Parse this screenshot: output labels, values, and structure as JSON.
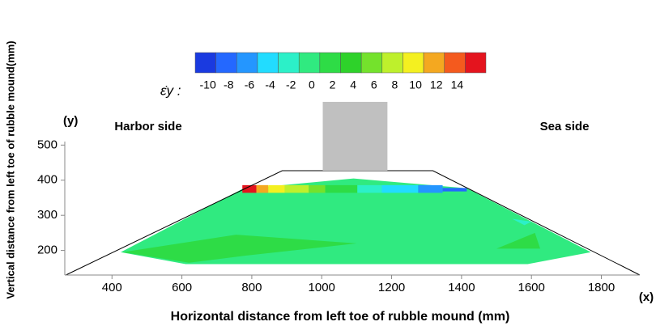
{
  "chart_data": {
    "type": "contour",
    "x_label": "Horizontal distance from left toe of rubble mound   (mm)",
    "y_label": "Vertical distance from left toe of rubble mound(mm)",
    "x_axis_name": "(x)",
    "y_axis_name": "(y)",
    "annotations": [
      "Harbor side",
      "Sea side"
    ],
    "xlim": [
      265,
      1910
    ],
    "ylim": [
      130,
      510
    ],
    "xticks": [
      400,
      600,
      800,
      1000,
      1200,
      1400,
      1600,
      1800
    ],
    "yticks": [
      200,
      300,
      400,
      500
    ],
    "colorbar": {
      "label": "ε̇y :",
      "ticks": [
        -10,
        -8,
        -6,
        -4,
        -2,
        0,
        2,
        4,
        6,
        8,
        10,
        12,
        14
      ],
      "colors": [
        "#1a3ae0",
        "#2468ff",
        "#2496ff",
        "#22dcff",
        "#2cf0c8",
        "#30ea80",
        "#2edc46",
        "#2ed22a",
        "#74e22c",
        "#bef02c",
        "#f4f020",
        "#f4a820",
        "#f45a1e",
        "#e4141e"
      ]
    },
    "outline": {
      "x": [
        268,
        887,
        1318,
        1910
      ],
      "y": [
        130,
        427,
        427,
        130
      ]
    },
    "caisson": {
      "x": [
        1003,
        1188
      ],
      "y": [
        427,
        623
      ]
    },
    "regions": [
      {
        "value": -1,
        "x": [
          425,
          773,
          1091,
          1415,
          1770,
          1589,
          1102,
          611
        ],
        "y": [
          195,
          375,
          405,
          377,
          195,
          161,
          161,
          161
        ]
      },
      {
        "value": 1,
        "x": [
          430,
          755,
          1100,
          780,
          620
        ],
        "y": [
          195,
          245,
          220,
          185,
          165
        ]
      },
      {
        "value": 1,
        "x": [
          1500,
          1610,
          1625
        ],
        "y": [
          205,
          250,
          205
        ]
      },
      {
        "value": -3,
        "x": [
          1545,
          1600,
          1580
        ],
        "y": [
          290,
          282,
          272
        ]
      },
      {
        "value": 15,
        "x": [
          773,
          813,
          813,
          773
        ],
        "y": [
          386,
          386,
          364,
          364
        ]
      },
      {
        "value": 11,
        "x": [
          813,
          847,
          847,
          813
        ],
        "y": [
          386,
          386,
          364,
          364
        ]
      },
      {
        "value": 9,
        "x": [
          847,
          894,
          894,
          847
        ],
        "y": [
          386,
          386,
          364,
          364
        ]
      },
      {
        "value": 7,
        "x": [
          894,
          963,
          963,
          894
        ],
        "y": [
          386,
          386,
          364,
          364
        ]
      },
      {
        "value": 5,
        "x": [
          963,
          1010,
          1010,
          963
        ],
        "y": [
          386,
          386,
          364,
          364
        ]
      },
      {
        "value": 1,
        "x": [
          1010,
          1102,
          1102,
          1010
        ],
        "y": [
          386,
          386,
          364,
          364
        ]
      },
      {
        "value": -3,
        "x": [
          1102,
          1172,
          1172,
          1102
        ],
        "y": [
          386,
          386,
          364,
          364
        ]
      },
      {
        "value": -5,
        "x": [
          1172,
          1276,
          1276,
          1172
        ],
        "y": [
          386,
          386,
          364,
          364
        ]
      },
      {
        "value": -7,
        "x": [
          1276,
          1346,
          1346,
          1276
        ],
        "y": [
          386,
          386,
          364,
          364
        ]
      },
      {
        "value": -9,
        "x": [
          1346,
          1415,
          1415,
          1346
        ],
        "y": [
          378,
          378,
          368,
          368
        ]
      }
    ]
  }
}
